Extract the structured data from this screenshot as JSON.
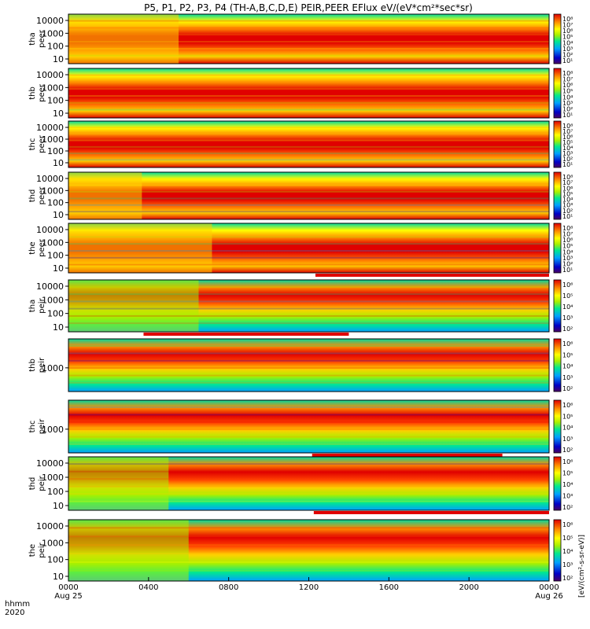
{
  "title": "P5, P1, P2, P3, P4 (TH-A,B,C,D,E) PEIR,PEER EFlux eV/(eV*cm²*sec*sr)",
  "chart_data": {
    "type": "heatmap",
    "x_time_label_row1": "hhmm",
    "x_time_label_row2": "2020",
    "x_ticks": [
      "0000",
      "0400",
      "0800",
      "1200",
      "1600",
      "2000",
      "0000"
    ],
    "x_date_labels": [
      "Aug 25",
      "Aug 26"
    ],
    "xlim": [
      "2020-08-25 00:00",
      "2020-08-26 00:00"
    ],
    "colorbar_axis_label": "[eV/(cm²-s-sr-eV)]",
    "colorbar_scale": "log",
    "panels": [
      {
        "ylabel_top": "tha",
        "ylabel_bottom": "peer",
        "y_scale": "log",
        "y_ticks": [
          "10000",
          "1000",
          "100",
          "10"
        ],
        "cbar_ticks": [
          "10⁸",
          "10⁷",
          "10⁶",
          "10⁵",
          "10⁴",
          "10³",
          "10²",
          "10¹"
        ],
        "plasma_transition_hhmm": "0530",
        "red_bar_range_hhmm": null
      },
      {
        "ylabel_top": "thb",
        "ylabel_bottom": "peer",
        "y_scale": "log",
        "y_ticks": [
          "10000",
          "1000",
          "100",
          "10"
        ],
        "cbar_ticks": [
          "10⁸",
          "10⁷",
          "10⁶",
          "10⁵",
          "10⁴",
          "10³",
          "10²",
          "10¹"
        ],
        "plasma_transition_hhmm": null,
        "red_bar_range_hhmm": null
      },
      {
        "ylabel_top": "thc",
        "ylabel_bottom": "peer",
        "y_scale": "log",
        "y_ticks": [
          "10000",
          "1000",
          "100",
          "10"
        ],
        "cbar_ticks": [
          "10⁸",
          "10⁷",
          "10⁶",
          "10⁵",
          "10⁴",
          "10³",
          "10²",
          "10¹"
        ],
        "plasma_transition_hhmm": null,
        "red_bar_range_hhmm": null
      },
      {
        "ylabel_top": "thd",
        "ylabel_bottom": "peer",
        "y_scale": "log",
        "y_ticks": [
          "10000",
          "1000",
          "100",
          "10"
        ],
        "cbar_ticks": [
          "10⁸",
          "10⁷",
          "10⁶",
          "10⁵",
          "10⁴",
          "10³",
          "10²",
          "10¹"
        ],
        "plasma_transition_hhmm": "0340",
        "red_bar_range_hhmm": null
      },
      {
        "ylabel_top": "the",
        "ylabel_bottom": "peer",
        "y_scale": "log",
        "y_ticks": [
          "10000",
          "1000",
          "100",
          "10"
        ],
        "cbar_ticks": [
          "10⁸",
          "10⁷",
          "10⁶",
          "10⁵",
          "10⁴",
          "10³",
          "10²",
          "10¹"
        ],
        "plasma_transition_hhmm": "0710",
        "red_bar_range_hhmm": [
          "1220",
          "2400"
        ]
      },
      {
        "ylabel_top": "tha",
        "ylabel_bottom": "peir",
        "y_scale": "log",
        "y_ticks": [
          "10000",
          "1000",
          "100",
          "10"
        ],
        "cbar_ticks": [
          "10⁶",
          "10⁵",
          "10⁴",
          "10³",
          "10²"
        ],
        "plasma_transition_hhmm": "0630",
        "red_bar_range_hhmm": [
          "0345",
          "1400"
        ]
      },
      {
        "ylabel_top": "thb",
        "ylabel_bottom": "peir",
        "y_scale": "log",
        "y_ticks": [
          "1000"
        ],
        "cbar_ticks": [
          "10⁶",
          "10⁵",
          "10⁴",
          "10³",
          "10²"
        ],
        "plasma_transition_hhmm": null,
        "red_bar_range_hhmm": null
      },
      {
        "ylabel_top": "thc",
        "ylabel_bottom": "peir",
        "y_scale": "log",
        "y_ticks": [
          "1000"
        ],
        "cbar_ticks": [
          "10⁶",
          "10⁵",
          "10⁴",
          "10³",
          "10²"
        ],
        "plasma_transition_hhmm": null,
        "red_bar_range_hhmm": [
          "1210",
          "2140"
        ]
      },
      {
        "ylabel_top": "thd",
        "ylabel_bottom": "peir",
        "y_scale": "log",
        "y_ticks": [
          "10000",
          "1000",
          "100",
          "10"
        ],
        "cbar_ticks": [
          "10⁶",
          "10⁵",
          "10⁴",
          "10³",
          "10²"
        ],
        "plasma_transition_hhmm": "0500",
        "red_bar_range_hhmm": [
          "1215",
          "2400"
        ]
      },
      {
        "ylabel_top": "the",
        "ylabel_bottom": "peir",
        "y_scale": "log",
        "y_ticks": [
          "10000",
          "1000",
          "100",
          "10"
        ],
        "cbar_ticks": [
          "10⁶",
          "10⁵",
          "10⁴",
          "10³",
          "10²"
        ],
        "plasma_transition_hhmm": "0600",
        "red_bar_range_hhmm": null
      }
    ]
  }
}
